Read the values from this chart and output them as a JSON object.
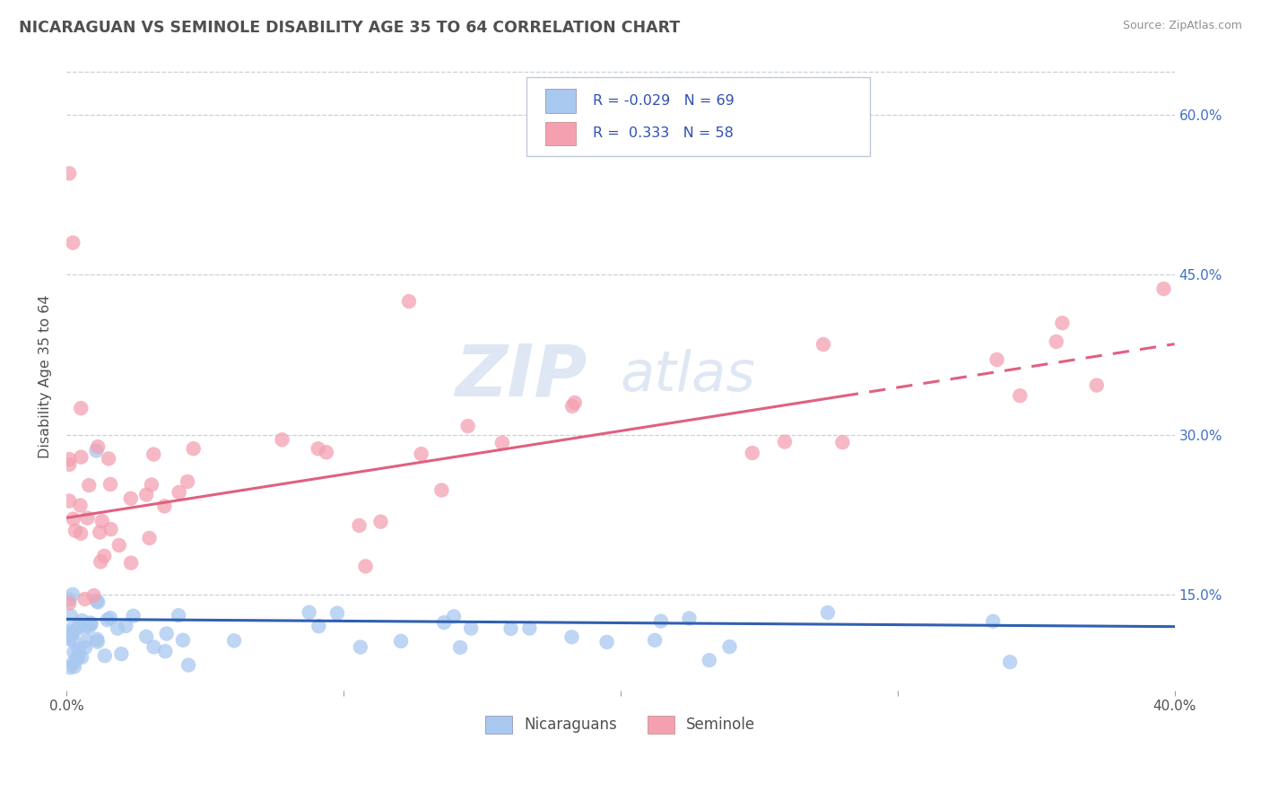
{
  "title": "NICARAGUAN VS SEMINOLE DISABILITY AGE 35 TO 64 CORRELATION CHART",
  "source": "Source: ZipAtlas.com",
  "ylabel": "Disability Age 35 to 64",
  "xmin": 0.0,
  "xmax": 0.4,
  "ymin": 0.06,
  "ymax": 0.65,
  "yticks": [
    0.15,
    0.3,
    0.45,
    0.6
  ],
  "ytick_labels_right": [
    "15.0%",
    "30.0%",
    "45.0%",
    "60.0%"
  ],
  "xticks": [
    0.0,
    0.1,
    0.2,
    0.3,
    0.4
  ],
  "xtick_labels": [
    "0.0%",
    "",
    "",
    "",
    "40.0%"
  ],
  "nicaraguan_color": "#a8c8f0",
  "seminole_color": "#f4a0b0",
  "nicaraguan_line_color": "#3060b0",
  "seminole_line_color": "#e06080",
  "nicaraguan_R": -0.029,
  "nicaraguan_N": 69,
  "seminole_R": 0.333,
  "seminole_N": 58,
  "legend_label_1": "Nicaraguans",
  "legend_label_2": "Seminole",
  "watermark": "ZIPatlas",
  "background_color": "#ffffff",
  "grid_color": "#c8d0d8",
  "title_color": "#505050",
  "axis_label_color": "#505050",
  "tick_color": "#505050",
  "legend_text_color": "#3050b0",
  "nic_line_y0": 0.127,
  "nic_line_y1": 0.12,
  "sem_line_y0": 0.222,
  "sem_line_y1": 0.385
}
